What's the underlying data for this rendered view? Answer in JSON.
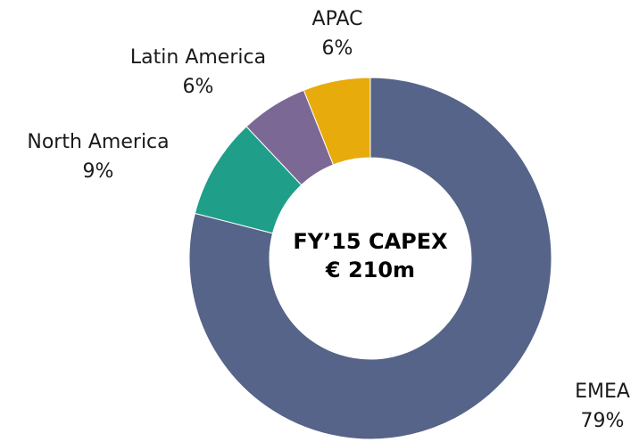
{
  "chart_data": {
    "type": "donut",
    "center_title": "FY’15 CAPEX",
    "center_value": "€ 210m",
    "categories": [
      "EMEA",
      "North America",
      "Latin America",
      "APAC"
    ],
    "values": [
      79,
      9,
      6,
      6
    ],
    "value_labels": [
      "79%",
      "9%",
      "6%",
      "6%"
    ],
    "colors": [
      "#556488",
      "#1f9e89",
      "#7b6895",
      "#e8ab0c"
    ]
  }
}
